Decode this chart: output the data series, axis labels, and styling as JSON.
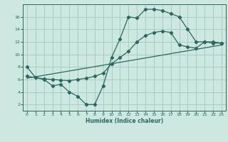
{
  "xlabel": "Humidex (Indice chaleur)",
  "bg_color": "#cce8e0",
  "grid_color": "#aaccc4",
  "line_color": "#2a6860",
  "xlim": [
    -0.5,
    23.5
  ],
  "ylim": [
    1,
    18
  ],
  "xticks": [
    0,
    1,
    2,
    3,
    4,
    5,
    6,
    7,
    8,
    9,
    10,
    11,
    12,
    13,
    14,
    15,
    16,
    17,
    18,
    19,
    20,
    21,
    22,
    23
  ],
  "yticks": [
    2,
    4,
    6,
    8,
    10,
    12,
    14,
    16
  ],
  "line1_x": [
    0,
    1,
    2,
    3,
    4,
    5,
    6,
    7,
    8,
    9,
    10,
    11,
    12,
    13,
    14,
    15,
    16,
    17,
    18,
    19,
    20,
    21,
    22,
    23
  ],
  "line1_y": [
    8.0,
    6.3,
    6.0,
    5.0,
    5.2,
    4.0,
    3.3,
    2.0,
    2.0,
    5.0,
    9.5,
    12.5,
    16.0,
    15.8,
    17.2,
    17.2,
    17.0,
    16.5,
    16.0,
    14.0,
    12.0,
    12.0,
    11.8,
    11.8
  ],
  "line2_x": [
    0,
    1,
    2,
    3,
    4,
    5,
    6,
    7,
    8,
    9,
    10,
    11,
    12,
    13,
    14,
    15,
    16,
    17,
    18,
    19,
    20,
    21,
    22,
    23
  ],
  "line2_y": [
    6.5,
    6.3,
    6.1,
    6.0,
    5.9,
    5.8,
    6.0,
    6.2,
    6.5,
    7.0,
    8.5,
    9.5,
    10.5,
    12.0,
    13.0,
    13.5,
    13.7,
    13.5,
    11.5,
    11.2,
    11.0,
    12.0,
    12.0,
    11.8
  ],
  "line3_x": [
    0,
    23
  ],
  "line3_y": [
    6.2,
    11.5
  ]
}
